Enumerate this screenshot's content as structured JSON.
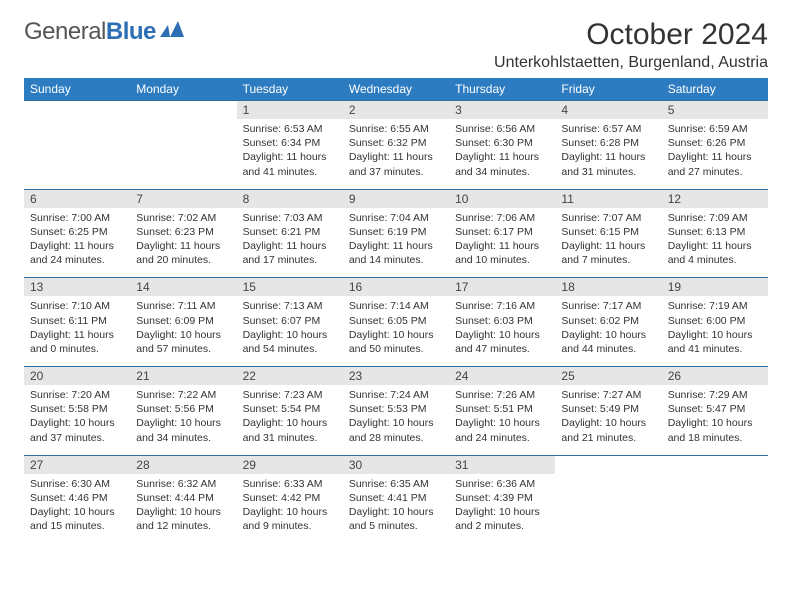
{
  "brand": {
    "part1": "General",
    "part2": "Blue"
  },
  "title": "October 2024",
  "location": "Unterkohlstaetten, Burgenland, Austria",
  "colors": {
    "header_bg": "#2d7cc1",
    "header_text": "#ffffff",
    "daynum_bg": "#e6e6e6",
    "row_border": "#2d6fa3",
    "brand_blue": "#2d6fb5",
    "text": "#333333"
  },
  "day_headers": [
    "Sunday",
    "Monday",
    "Tuesday",
    "Wednesday",
    "Thursday",
    "Friday",
    "Saturday"
  ],
  "weeks": [
    [
      null,
      null,
      {
        "n": "1",
        "sr": "Sunrise: 6:53 AM",
        "ss": "Sunset: 6:34 PM",
        "dl": "Daylight: 11 hours and 41 minutes."
      },
      {
        "n": "2",
        "sr": "Sunrise: 6:55 AM",
        "ss": "Sunset: 6:32 PM",
        "dl": "Daylight: 11 hours and 37 minutes."
      },
      {
        "n": "3",
        "sr": "Sunrise: 6:56 AM",
        "ss": "Sunset: 6:30 PM",
        "dl": "Daylight: 11 hours and 34 minutes."
      },
      {
        "n": "4",
        "sr": "Sunrise: 6:57 AM",
        "ss": "Sunset: 6:28 PM",
        "dl": "Daylight: 11 hours and 31 minutes."
      },
      {
        "n": "5",
        "sr": "Sunrise: 6:59 AM",
        "ss": "Sunset: 6:26 PM",
        "dl": "Daylight: 11 hours and 27 minutes."
      }
    ],
    [
      {
        "n": "6",
        "sr": "Sunrise: 7:00 AM",
        "ss": "Sunset: 6:25 PM",
        "dl": "Daylight: 11 hours and 24 minutes."
      },
      {
        "n": "7",
        "sr": "Sunrise: 7:02 AM",
        "ss": "Sunset: 6:23 PM",
        "dl": "Daylight: 11 hours and 20 minutes."
      },
      {
        "n": "8",
        "sr": "Sunrise: 7:03 AM",
        "ss": "Sunset: 6:21 PM",
        "dl": "Daylight: 11 hours and 17 minutes."
      },
      {
        "n": "9",
        "sr": "Sunrise: 7:04 AM",
        "ss": "Sunset: 6:19 PM",
        "dl": "Daylight: 11 hours and 14 minutes."
      },
      {
        "n": "10",
        "sr": "Sunrise: 7:06 AM",
        "ss": "Sunset: 6:17 PM",
        "dl": "Daylight: 11 hours and 10 minutes."
      },
      {
        "n": "11",
        "sr": "Sunrise: 7:07 AM",
        "ss": "Sunset: 6:15 PM",
        "dl": "Daylight: 11 hours and 7 minutes."
      },
      {
        "n": "12",
        "sr": "Sunrise: 7:09 AM",
        "ss": "Sunset: 6:13 PM",
        "dl": "Daylight: 11 hours and 4 minutes."
      }
    ],
    [
      {
        "n": "13",
        "sr": "Sunrise: 7:10 AM",
        "ss": "Sunset: 6:11 PM",
        "dl": "Daylight: 11 hours and 0 minutes."
      },
      {
        "n": "14",
        "sr": "Sunrise: 7:11 AM",
        "ss": "Sunset: 6:09 PM",
        "dl": "Daylight: 10 hours and 57 minutes."
      },
      {
        "n": "15",
        "sr": "Sunrise: 7:13 AM",
        "ss": "Sunset: 6:07 PM",
        "dl": "Daylight: 10 hours and 54 minutes."
      },
      {
        "n": "16",
        "sr": "Sunrise: 7:14 AM",
        "ss": "Sunset: 6:05 PM",
        "dl": "Daylight: 10 hours and 50 minutes."
      },
      {
        "n": "17",
        "sr": "Sunrise: 7:16 AM",
        "ss": "Sunset: 6:03 PM",
        "dl": "Daylight: 10 hours and 47 minutes."
      },
      {
        "n": "18",
        "sr": "Sunrise: 7:17 AM",
        "ss": "Sunset: 6:02 PM",
        "dl": "Daylight: 10 hours and 44 minutes."
      },
      {
        "n": "19",
        "sr": "Sunrise: 7:19 AM",
        "ss": "Sunset: 6:00 PM",
        "dl": "Daylight: 10 hours and 41 minutes."
      }
    ],
    [
      {
        "n": "20",
        "sr": "Sunrise: 7:20 AM",
        "ss": "Sunset: 5:58 PM",
        "dl": "Daylight: 10 hours and 37 minutes."
      },
      {
        "n": "21",
        "sr": "Sunrise: 7:22 AM",
        "ss": "Sunset: 5:56 PM",
        "dl": "Daylight: 10 hours and 34 minutes."
      },
      {
        "n": "22",
        "sr": "Sunrise: 7:23 AM",
        "ss": "Sunset: 5:54 PM",
        "dl": "Daylight: 10 hours and 31 minutes."
      },
      {
        "n": "23",
        "sr": "Sunrise: 7:24 AM",
        "ss": "Sunset: 5:53 PM",
        "dl": "Daylight: 10 hours and 28 minutes."
      },
      {
        "n": "24",
        "sr": "Sunrise: 7:26 AM",
        "ss": "Sunset: 5:51 PM",
        "dl": "Daylight: 10 hours and 24 minutes."
      },
      {
        "n": "25",
        "sr": "Sunrise: 7:27 AM",
        "ss": "Sunset: 5:49 PM",
        "dl": "Daylight: 10 hours and 21 minutes."
      },
      {
        "n": "26",
        "sr": "Sunrise: 7:29 AM",
        "ss": "Sunset: 5:47 PM",
        "dl": "Daylight: 10 hours and 18 minutes."
      }
    ],
    [
      {
        "n": "27",
        "sr": "Sunrise: 6:30 AM",
        "ss": "Sunset: 4:46 PM",
        "dl": "Daylight: 10 hours and 15 minutes."
      },
      {
        "n": "28",
        "sr": "Sunrise: 6:32 AM",
        "ss": "Sunset: 4:44 PM",
        "dl": "Daylight: 10 hours and 12 minutes."
      },
      {
        "n": "29",
        "sr": "Sunrise: 6:33 AM",
        "ss": "Sunset: 4:42 PM",
        "dl": "Daylight: 10 hours and 9 minutes."
      },
      {
        "n": "30",
        "sr": "Sunrise: 6:35 AM",
        "ss": "Sunset: 4:41 PM",
        "dl": "Daylight: 10 hours and 5 minutes."
      },
      {
        "n": "31",
        "sr": "Sunrise: 6:36 AM",
        "ss": "Sunset: 4:39 PM",
        "dl": "Daylight: 10 hours and 2 minutes."
      },
      null,
      null
    ]
  ]
}
